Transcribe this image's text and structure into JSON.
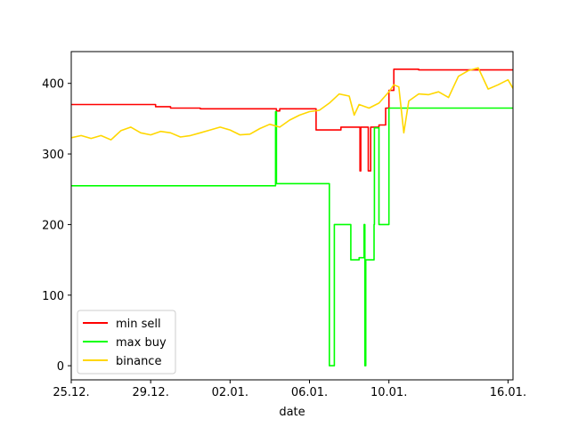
{
  "chart_data": {
    "type": "line",
    "title": "",
    "xlabel": "date",
    "ylabel": "",
    "xlim": [
      "2023-12-25",
      "2024-01-16T06:00"
    ],
    "ylim": [
      -20,
      445
    ],
    "x_ticks": [
      {
        "date": "2023-12-25",
        "label": "25.12."
      },
      {
        "date": "2023-12-29",
        "label": "29.12."
      },
      {
        "date": "2024-01-02",
        "label": "02.01."
      },
      {
        "date": "2024-01-06",
        "label": "06.01."
      },
      {
        "date": "2024-01-10",
        "label": "10.01."
      },
      {
        "date": "2024-01-16",
        "label": "16.01."
      }
    ],
    "y_ticks": [
      0,
      100,
      200,
      300,
      400
    ],
    "grid": false,
    "legend": "lower-left",
    "series": [
      {
        "name": "min sell",
        "color": "#ff0000",
        "step": true,
        "points": [
          [
            "2023-12-25",
            370
          ],
          [
            "2023-12-29",
            370
          ],
          [
            "2023-12-29T06:00",
            367
          ],
          [
            "2023-12-30",
            365
          ],
          [
            "2023-12-31T12:00",
            364
          ],
          [
            "2024-01-04T06:00",
            364
          ],
          [
            "2024-01-04T08:00",
            361
          ],
          [
            "2024-01-04T12:00",
            364
          ],
          [
            "2024-01-06T06:00",
            364
          ],
          [
            "2024-01-06T08:00",
            334
          ],
          [
            "2024-01-07T12:00",
            334
          ],
          [
            "2024-01-07T14:00",
            338
          ],
          [
            "2024-01-08T12:00",
            338
          ],
          [
            "2024-01-08T13:00",
            276
          ],
          [
            "2024-01-08T14:00",
            338
          ],
          [
            "2024-01-08T22:00",
            338
          ],
          [
            "2024-01-08T23:00",
            276
          ],
          [
            "2024-01-09T02:00",
            338
          ],
          [
            "2024-01-09T12:00",
            341
          ],
          [
            "2024-01-09T20:00",
            365
          ],
          [
            "2024-01-10T00:00",
            390
          ],
          [
            "2024-01-10T06:00",
            420
          ],
          [
            "2024-01-11T12:00",
            419
          ],
          [
            "2024-01-16T06:00",
            419
          ]
        ]
      },
      {
        "name": "max buy",
        "color": "#00ff00",
        "step": true,
        "points": [
          [
            "2023-12-25",
            255
          ],
          [
            "2024-01-04T06:00",
            255
          ],
          [
            "2024-01-04T07:00",
            360
          ],
          [
            "2024-01-04T08:00",
            258
          ],
          [
            "2024-01-06T18:00",
            258
          ],
          [
            "2024-01-07T00:00",
            0
          ],
          [
            "2024-01-07T06:00",
            200
          ],
          [
            "2024-01-08T00:00",
            200
          ],
          [
            "2024-01-08T02:00",
            150
          ],
          [
            "2024-01-08T12:00",
            153
          ],
          [
            "2024-01-08T18:00",
            200
          ],
          [
            "2024-01-08T19:00",
            0
          ],
          [
            "2024-01-08T20:00",
            150
          ],
          [
            "2024-01-09T06:00",
            200
          ],
          [
            "2024-01-09T06:30",
            337
          ],
          [
            "2024-01-09T12:00",
            200
          ],
          [
            "2024-01-10T00:00",
            365
          ],
          [
            "2024-01-16T06:00",
            365
          ]
        ]
      },
      {
        "name": "binance",
        "color": "#ffd700",
        "step": false,
        "points": [
          [
            "2023-12-25",
            323
          ],
          [
            "2023-12-25T12:00",
            326
          ],
          [
            "2023-12-26",
            322
          ],
          [
            "2023-12-26T12:00",
            326
          ],
          [
            "2023-12-27",
            320
          ],
          [
            "2023-12-27T12:00",
            333
          ],
          [
            "2023-12-28",
            338
          ],
          [
            "2023-12-28T12:00",
            330
          ],
          [
            "2023-12-29",
            327
          ],
          [
            "2023-12-29T12:00",
            332
          ],
          [
            "2023-12-30",
            330
          ],
          [
            "2023-12-30T12:00",
            324
          ],
          [
            "2023-12-31",
            326
          ],
          [
            "2023-12-31T12:00",
            330
          ],
          [
            "2024-01-01",
            334
          ],
          [
            "2024-01-01T12:00",
            338
          ],
          [
            "2024-01-02",
            334
          ],
          [
            "2024-01-02T12:00",
            327
          ],
          [
            "2024-01-03",
            328
          ],
          [
            "2024-01-03T12:00",
            336
          ],
          [
            "2024-01-04",
            342
          ],
          [
            "2024-01-04T12:00",
            338
          ],
          [
            "2024-01-05",
            348
          ],
          [
            "2024-01-05T12:00",
            355
          ],
          [
            "2024-01-06",
            360
          ],
          [
            "2024-01-06T12:00",
            362
          ],
          [
            "2024-01-07",
            372
          ],
          [
            "2024-01-07T12:00",
            385
          ],
          [
            "2024-01-08",
            382
          ],
          [
            "2024-01-08T06:00",
            355
          ],
          [
            "2024-01-08T12:00",
            370
          ],
          [
            "2024-01-09",
            365
          ],
          [
            "2024-01-09T12:00",
            372
          ],
          [
            "2024-01-10",
            388
          ],
          [
            "2024-01-10T06:00",
            398
          ],
          [
            "2024-01-10T12:00",
            395
          ],
          [
            "2024-01-10T18:00",
            330
          ],
          [
            "2024-01-11",
            375
          ],
          [
            "2024-01-11T12:00",
            385
          ],
          [
            "2024-01-12",
            384
          ],
          [
            "2024-01-12T12:00",
            388
          ],
          [
            "2024-01-13",
            380
          ],
          [
            "2024-01-13T12:00",
            410
          ],
          [
            "2024-01-14",
            418
          ],
          [
            "2024-01-14T12:00",
            422
          ],
          [
            "2024-01-15",
            392
          ],
          [
            "2024-01-15T12:00",
            398
          ],
          [
            "2024-01-16",
            405
          ],
          [
            "2024-01-16T06:00",
            393
          ]
        ]
      }
    ]
  }
}
